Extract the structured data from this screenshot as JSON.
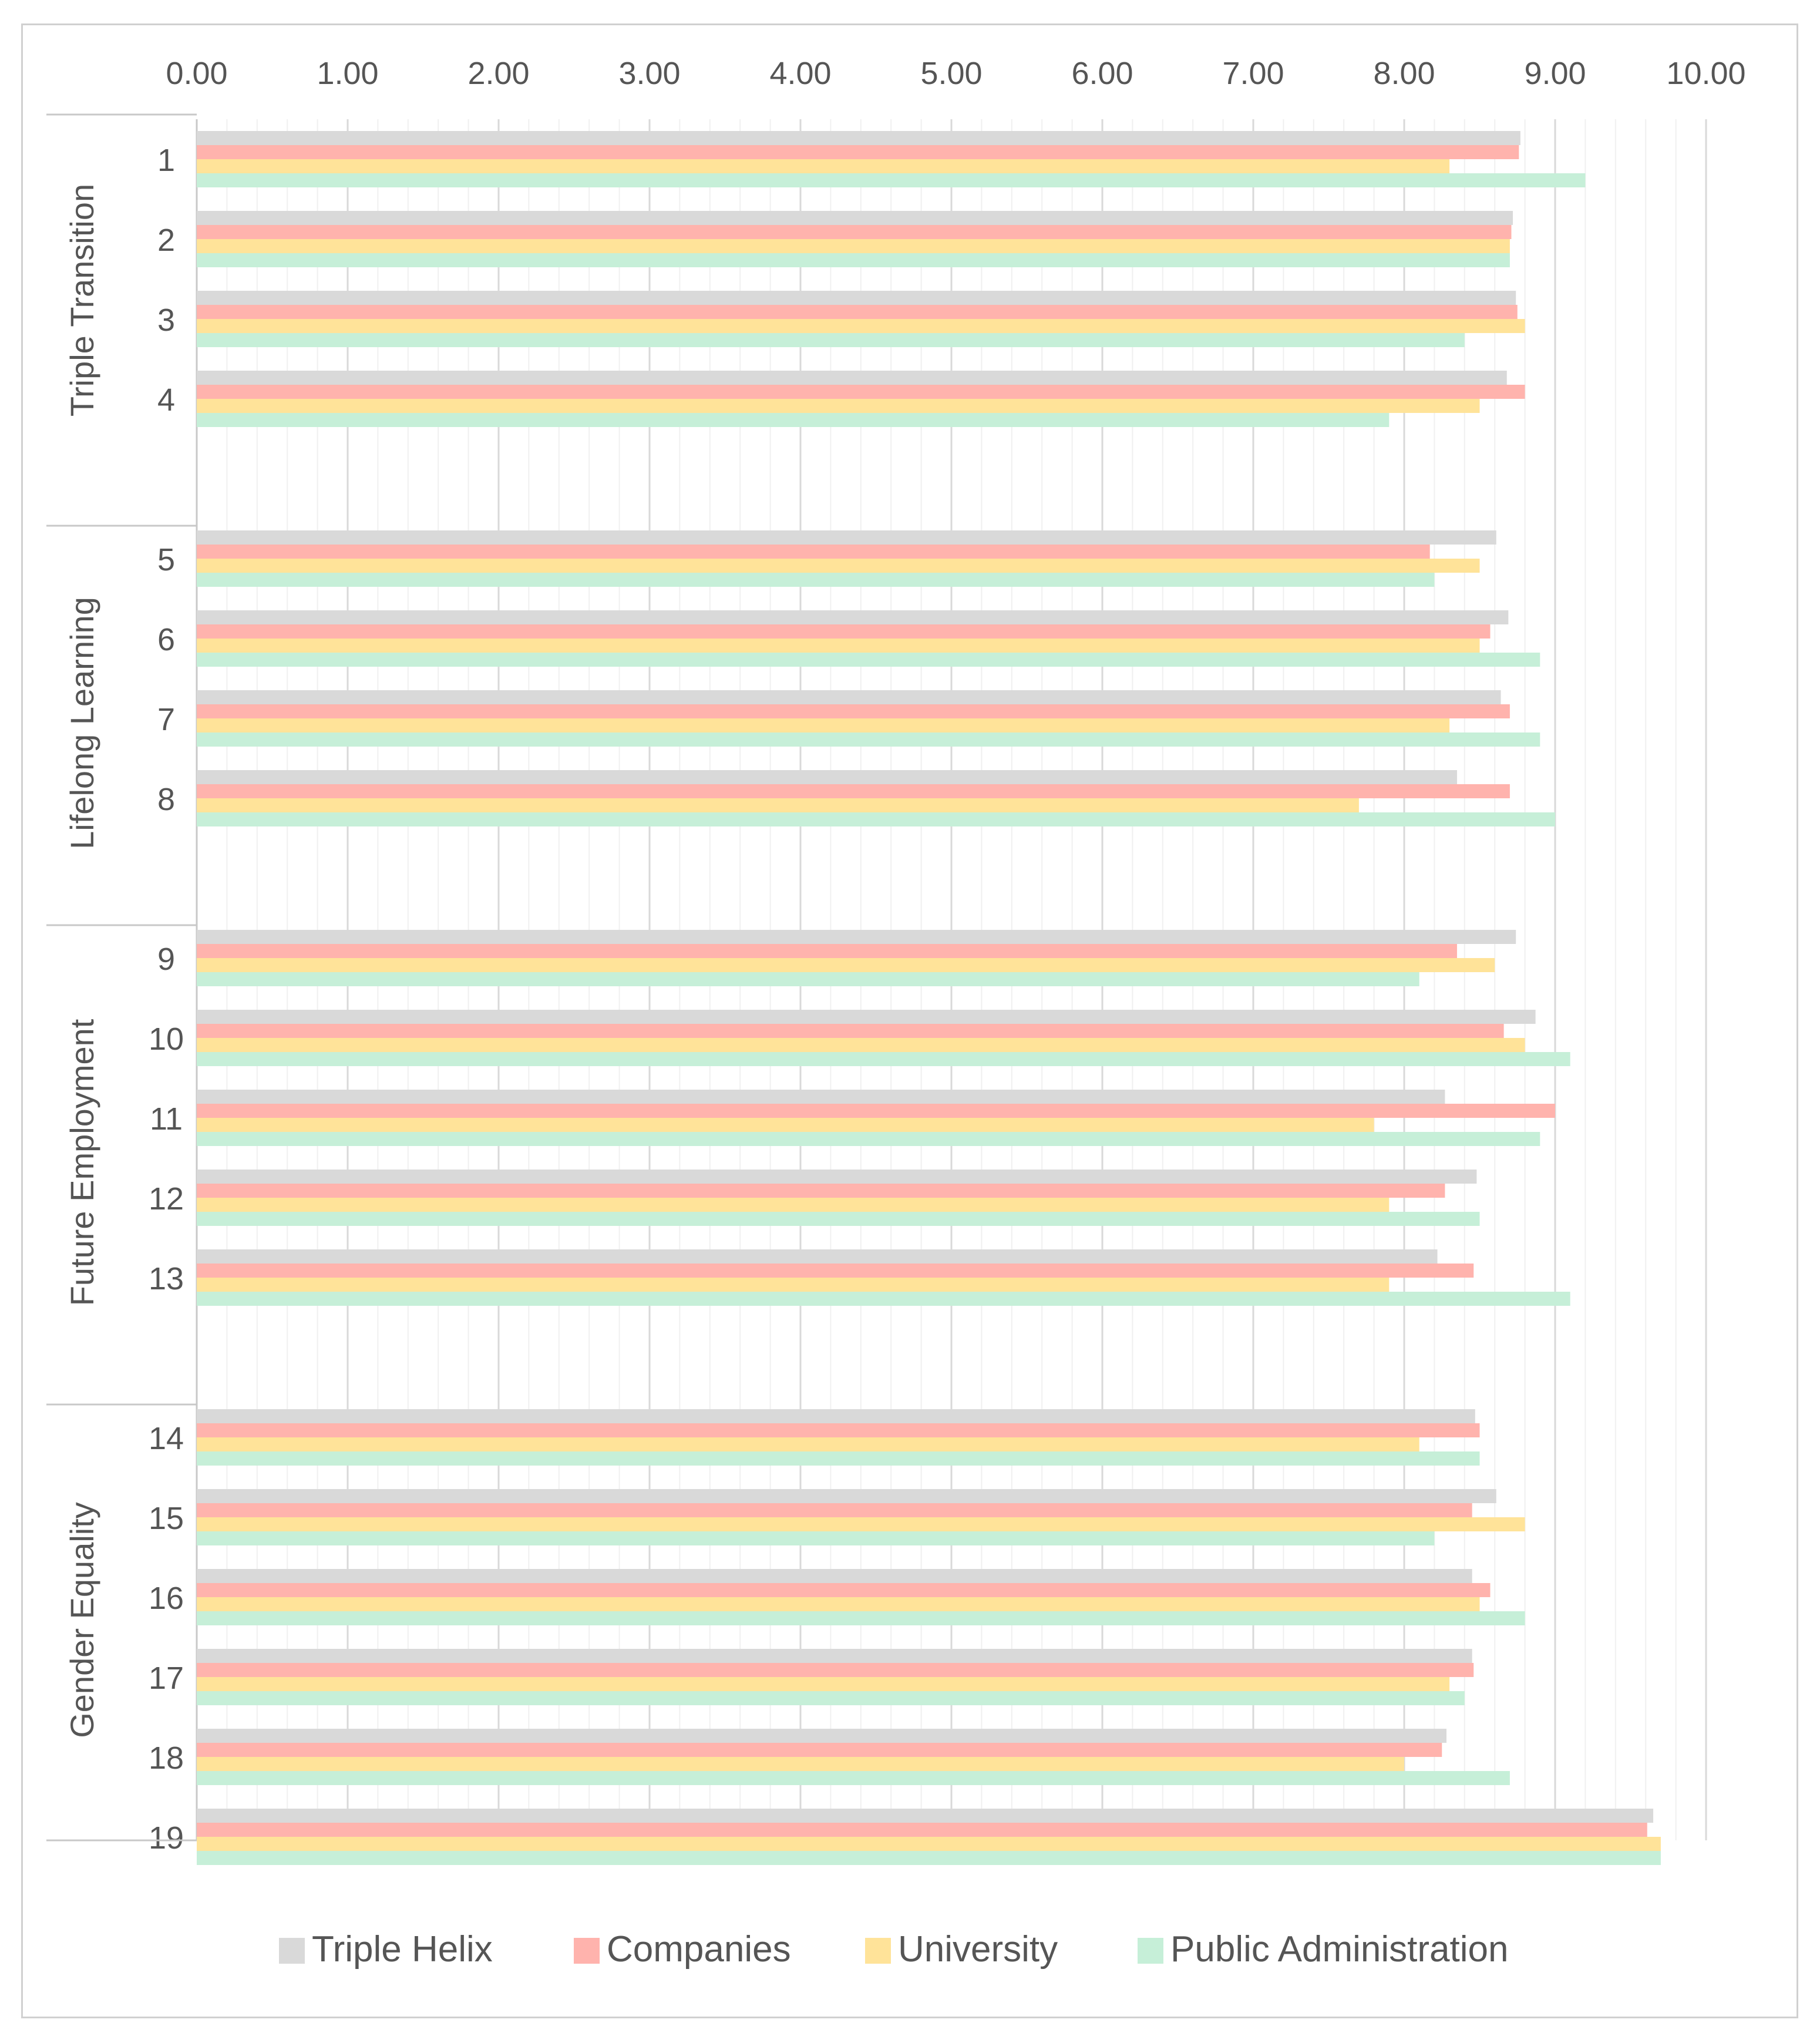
{
  "chart_data": {
    "type": "bar",
    "orientation": "horizontal",
    "title": "",
    "xlabel": "",
    "ylabel": "",
    "xlim": [
      0,
      10
    ],
    "x_ticks": [
      "0.00",
      "1.00",
      "2.00",
      "3.00",
      "4.00",
      "5.00",
      "6.00",
      "7.00",
      "8.00",
      "9.00",
      "10.00"
    ],
    "x_axis_position": "top",
    "grid": true,
    "legend_position": "bottom",
    "groups": [
      {
        "name": "Triple Transition",
        "items": [
          "1",
          "2",
          "3",
          "4"
        ]
      },
      {
        "name": "Lifelong Learning",
        "items": [
          "5",
          "6",
          "7",
          "8"
        ]
      },
      {
        "name": "Future Employment",
        "items": [
          "9",
          "10",
          "11",
          "12",
          "13"
        ]
      },
      {
        "name": "Gender Equality",
        "items": [
          "14",
          "15",
          "16",
          "17",
          "18",
          "19"
        ]
      }
    ],
    "categories": [
      "1",
      "2",
      "3",
      "4",
      "5",
      "6",
      "7",
      "8",
      "9",
      "10",
      "11",
      "12",
      "13",
      "14",
      "15",
      "16",
      "17",
      "18",
      "19"
    ],
    "series": [
      {
        "name": "Triple Helix",
        "color": "#d9d9d9",
        "values": [
          8.77,
          8.72,
          8.74,
          8.68,
          8.61,
          8.69,
          8.64,
          8.35,
          8.74,
          8.87,
          8.27,
          8.48,
          8.22,
          8.47,
          8.61,
          8.45,
          8.45,
          8.28,
          9.65
        ]
      },
      {
        "name": "Companies",
        "color": "#ffb3ad",
        "values": [
          8.76,
          8.71,
          8.75,
          8.8,
          8.17,
          8.57,
          8.7,
          8.7,
          8.35,
          8.66,
          9.0,
          8.27,
          8.46,
          8.5,
          8.45,
          8.57,
          8.46,
          8.25,
          9.61
        ]
      },
      {
        "name": "University",
        "color": "#ffe399",
        "values": [
          8.3,
          8.7,
          8.8,
          8.5,
          8.5,
          8.5,
          8.3,
          7.7,
          8.6,
          8.8,
          7.8,
          7.9,
          7.9,
          8.1,
          8.8,
          8.5,
          8.3,
          8.0,
          9.7
        ]
      },
      {
        "name": "Public Administration",
        "color": "#c6efd8",
        "values": [
          9.2,
          8.7,
          8.4,
          7.9,
          8.2,
          8.9,
          8.9,
          9.0,
          8.1,
          9.1,
          8.9,
          8.5,
          9.1,
          8.5,
          8.2,
          8.8,
          8.4,
          8.7,
          9.7
        ]
      }
    ]
  }
}
